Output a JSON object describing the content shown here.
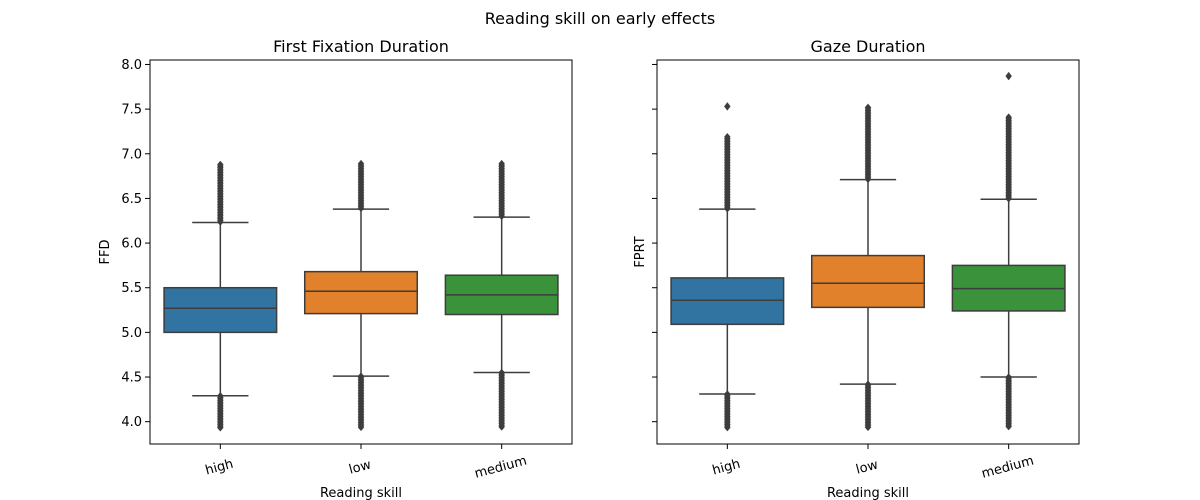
{
  "figure": {
    "suptitle": "Reading skill on early effects"
  },
  "chart_data": [
    {
      "type": "box",
      "title": "First Fixation Duration",
      "xlabel": "Reading skill",
      "ylabel": "FFD",
      "categories": [
        "high",
        "low",
        "medium"
      ],
      "ylim": [
        3.75,
        8.05
      ],
      "yticks": [
        4.0,
        4.5,
        5.0,
        5.5,
        6.0,
        6.5,
        7.0,
        7.5,
        8.0
      ],
      "ytick_labels": [
        "4.0",
        "4.5",
        "5.0",
        "5.5",
        "6.0",
        "6.5",
        "7.0",
        "7.5",
        "8.0"
      ],
      "boxes": [
        {
          "category": "high",
          "color": "#3274a1",
          "whisker_low": 4.29,
          "q1": 5.0,
          "median": 5.27,
          "q3": 5.5,
          "whisker_high": 6.23,
          "outliers_low_range": [
            3.93,
            4.29
          ],
          "outliers_high_range": [
            6.23,
            6.88
          ]
        },
        {
          "category": "low",
          "color": "#e1812c",
          "whisker_low": 4.51,
          "q1": 5.21,
          "median": 5.46,
          "q3": 5.68,
          "whisker_high": 6.38,
          "outliers_low_range": [
            3.93,
            4.51
          ],
          "outliers_high_range": [
            6.38,
            6.89
          ]
        },
        {
          "category": "medium",
          "color": "#3a923a",
          "whisker_low": 4.55,
          "q1": 5.2,
          "median": 5.42,
          "q3": 5.64,
          "whisker_high": 6.29,
          "outliers_low_range": [
            3.93,
            4.55
          ],
          "outliers_high_range": [
            6.29,
            6.89
          ]
        }
      ]
    },
    {
      "type": "box",
      "title": "Gaze Duration",
      "xlabel": "Reading skill",
      "ylabel": "FPRT",
      "categories": [
        "high",
        "low",
        "medium"
      ],
      "ylim": [
        3.75,
        8.05
      ],
      "sharey": true,
      "boxes": [
        {
          "category": "high",
          "color": "#3274a1",
          "whisker_low": 4.31,
          "q1": 5.09,
          "median": 5.36,
          "q3": 5.61,
          "whisker_high": 6.38,
          "outliers_low_range": [
            3.93,
            4.31
          ],
          "outliers_high_range": [
            6.38,
            7.19
          ],
          "extra_outliers": [
            7.53
          ]
        },
        {
          "category": "low",
          "color": "#e1812c",
          "whisker_low": 4.42,
          "q1": 5.28,
          "median": 5.55,
          "q3": 5.86,
          "whisker_high": 6.71,
          "outliers_low_range": [
            3.93,
            4.42
          ],
          "outliers_high_range": [
            6.71,
            7.52
          ]
        },
        {
          "category": "medium",
          "color": "#3a923a",
          "whisker_low": 4.5,
          "q1": 5.24,
          "median": 5.49,
          "q3": 5.75,
          "whisker_high": 6.49,
          "outliers_low_range": [
            3.93,
            4.5
          ],
          "outliers_high_range": [
            6.49,
            7.41
          ],
          "extra_outliers": [
            7.87
          ]
        }
      ]
    }
  ]
}
